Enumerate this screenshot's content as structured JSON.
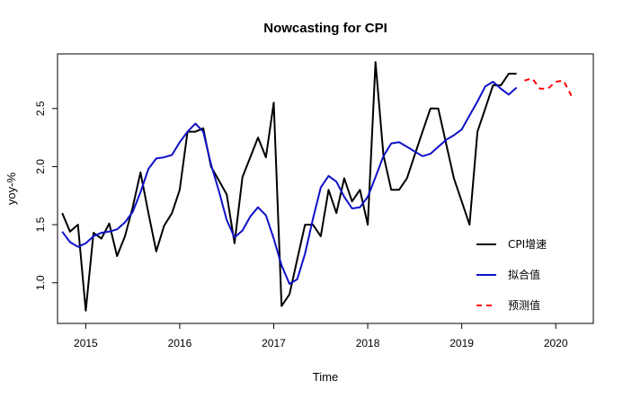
{
  "chart_data": {
    "type": "line",
    "title": "Nowcasting for CPI",
    "xlabel": "Time",
    "ylabel": "yoy-%",
    "xlim": [
      2014.7,
      2020.4
    ],
    "ylim": [
      0.65,
      2.97
    ],
    "x_ticks": [
      2015,
      2016,
      2017,
      2018,
      2019,
      2020
    ],
    "x_tick_labels": [
      "2015",
      "2016",
      "2017",
      "2018",
      "2019",
      "2020"
    ],
    "y_ticks": [
      1.0,
      1.5,
      2.0,
      2.5
    ],
    "y_tick_labels": [
      "1.0",
      "1.5",
      "2.0",
      "2.5"
    ],
    "grid": false,
    "legend_position": "bottom-right",
    "series": [
      {
        "name": "CPI增速",
        "color": "#000000",
        "style": "solid",
        "x": [
          2014.75,
          2014.833,
          2014.917,
          2015.0,
          2015.083,
          2015.167,
          2015.25,
          2015.333,
          2015.417,
          2015.5,
          2015.583,
          2015.667,
          2015.75,
          2015.833,
          2015.917,
          2016.0,
          2016.083,
          2016.167,
          2016.25,
          2016.333,
          2016.417,
          2016.5,
          2016.583,
          2016.667,
          2016.75,
          2016.833,
          2016.917,
          2017.0,
          2017.083,
          2017.167,
          2017.25,
          2017.333,
          2017.417,
          2017.5,
          2017.583,
          2017.667,
          2017.75,
          2017.833,
          2017.917,
          2018.0,
          2018.083,
          2018.167,
          2018.25,
          2018.333,
          2018.417,
          2018.5,
          2018.583,
          2018.667,
          2018.75,
          2018.833,
          2018.917,
          2019.0,
          2019.083,
          2019.167,
          2019.25,
          2019.333,
          2019.417,
          2019.5,
          2019.583
        ],
        "values": [
          1.6,
          1.44,
          1.5,
          0.76,
          1.43,
          1.38,
          1.51,
          1.23,
          1.4,
          1.65,
          1.95,
          1.6,
          1.27,
          1.49,
          1.6,
          1.8,
          2.3,
          2.3,
          2.33,
          2.0,
          1.88,
          1.76,
          1.34,
          1.91,
          2.08,
          2.25,
          2.08,
          2.55,
          0.8,
          0.9,
          1.2,
          1.5,
          1.5,
          1.4,
          1.8,
          1.6,
          1.9,
          1.7,
          1.8,
          1.5,
          2.9,
          2.1,
          1.8,
          1.8,
          1.9,
          2.1,
          2.3,
          2.5,
          2.5,
          2.2,
          1.9,
          1.7,
          1.5,
          2.3,
          2.5,
          2.7,
          2.7,
          2.8,
          2.8
        ]
      },
      {
        "name": "拟合值",
        "color": "#1010c8",
        "style": "solid",
        "x": [
          2014.75,
          2014.833,
          2014.917,
          2015.0,
          2015.083,
          2015.167,
          2015.25,
          2015.333,
          2015.417,
          2015.5,
          2015.583,
          2015.667,
          2015.75,
          2015.833,
          2015.917,
          2016.0,
          2016.083,
          2016.167,
          2016.25,
          2016.333,
          2016.417,
          2016.5,
          2016.583,
          2016.667,
          2016.75,
          2016.833,
          2016.917,
          2017.0,
          2017.083,
          2017.167,
          2017.25,
          2017.333,
          2017.417,
          2017.5,
          2017.583,
          2017.667,
          2017.75,
          2017.833,
          2017.917,
          2018.0,
          2018.083,
          2018.167,
          2018.25,
          2018.333,
          2018.417,
          2018.5,
          2018.583,
          2018.667,
          2018.75,
          2018.833,
          2018.917,
          2019.0,
          2019.083,
          2019.167,
          2019.25,
          2019.333,
          2019.417,
          2019.5,
          2019.583
        ],
        "values": [
          1.44,
          1.35,
          1.31,
          1.34,
          1.4,
          1.43,
          1.44,
          1.46,
          1.52,
          1.61,
          1.78,
          1.98,
          2.07,
          2.08,
          2.1,
          2.21,
          2.3,
          2.37,
          2.3,
          2.02,
          1.79,
          1.54,
          1.39,
          1.45,
          1.57,
          1.65,
          1.58,
          1.38,
          1.15,
          0.99,
          1.03,
          1.25,
          1.55,
          1.82,
          1.92,
          1.87,
          1.74,
          1.64,
          1.65,
          1.74,
          1.91,
          2.09,
          2.2,
          2.21,
          2.17,
          2.13,
          2.09,
          2.11,
          2.17,
          2.23,
          2.27,
          2.32,
          2.44,
          2.56,
          2.69,
          2.73,
          2.67,
          2.62,
          2.68
        ]
      },
      {
        "name": "预测值",
        "color": "#ff0000",
        "style": "dashed",
        "x": [
          2019.667,
          2019.75,
          2019.833,
          2019.917,
          2020.0,
          2020.083,
          2020.167
        ],
        "values": [
          2.74,
          2.76,
          2.67,
          2.67,
          2.73,
          2.74,
          2.61
        ]
      }
    ]
  }
}
